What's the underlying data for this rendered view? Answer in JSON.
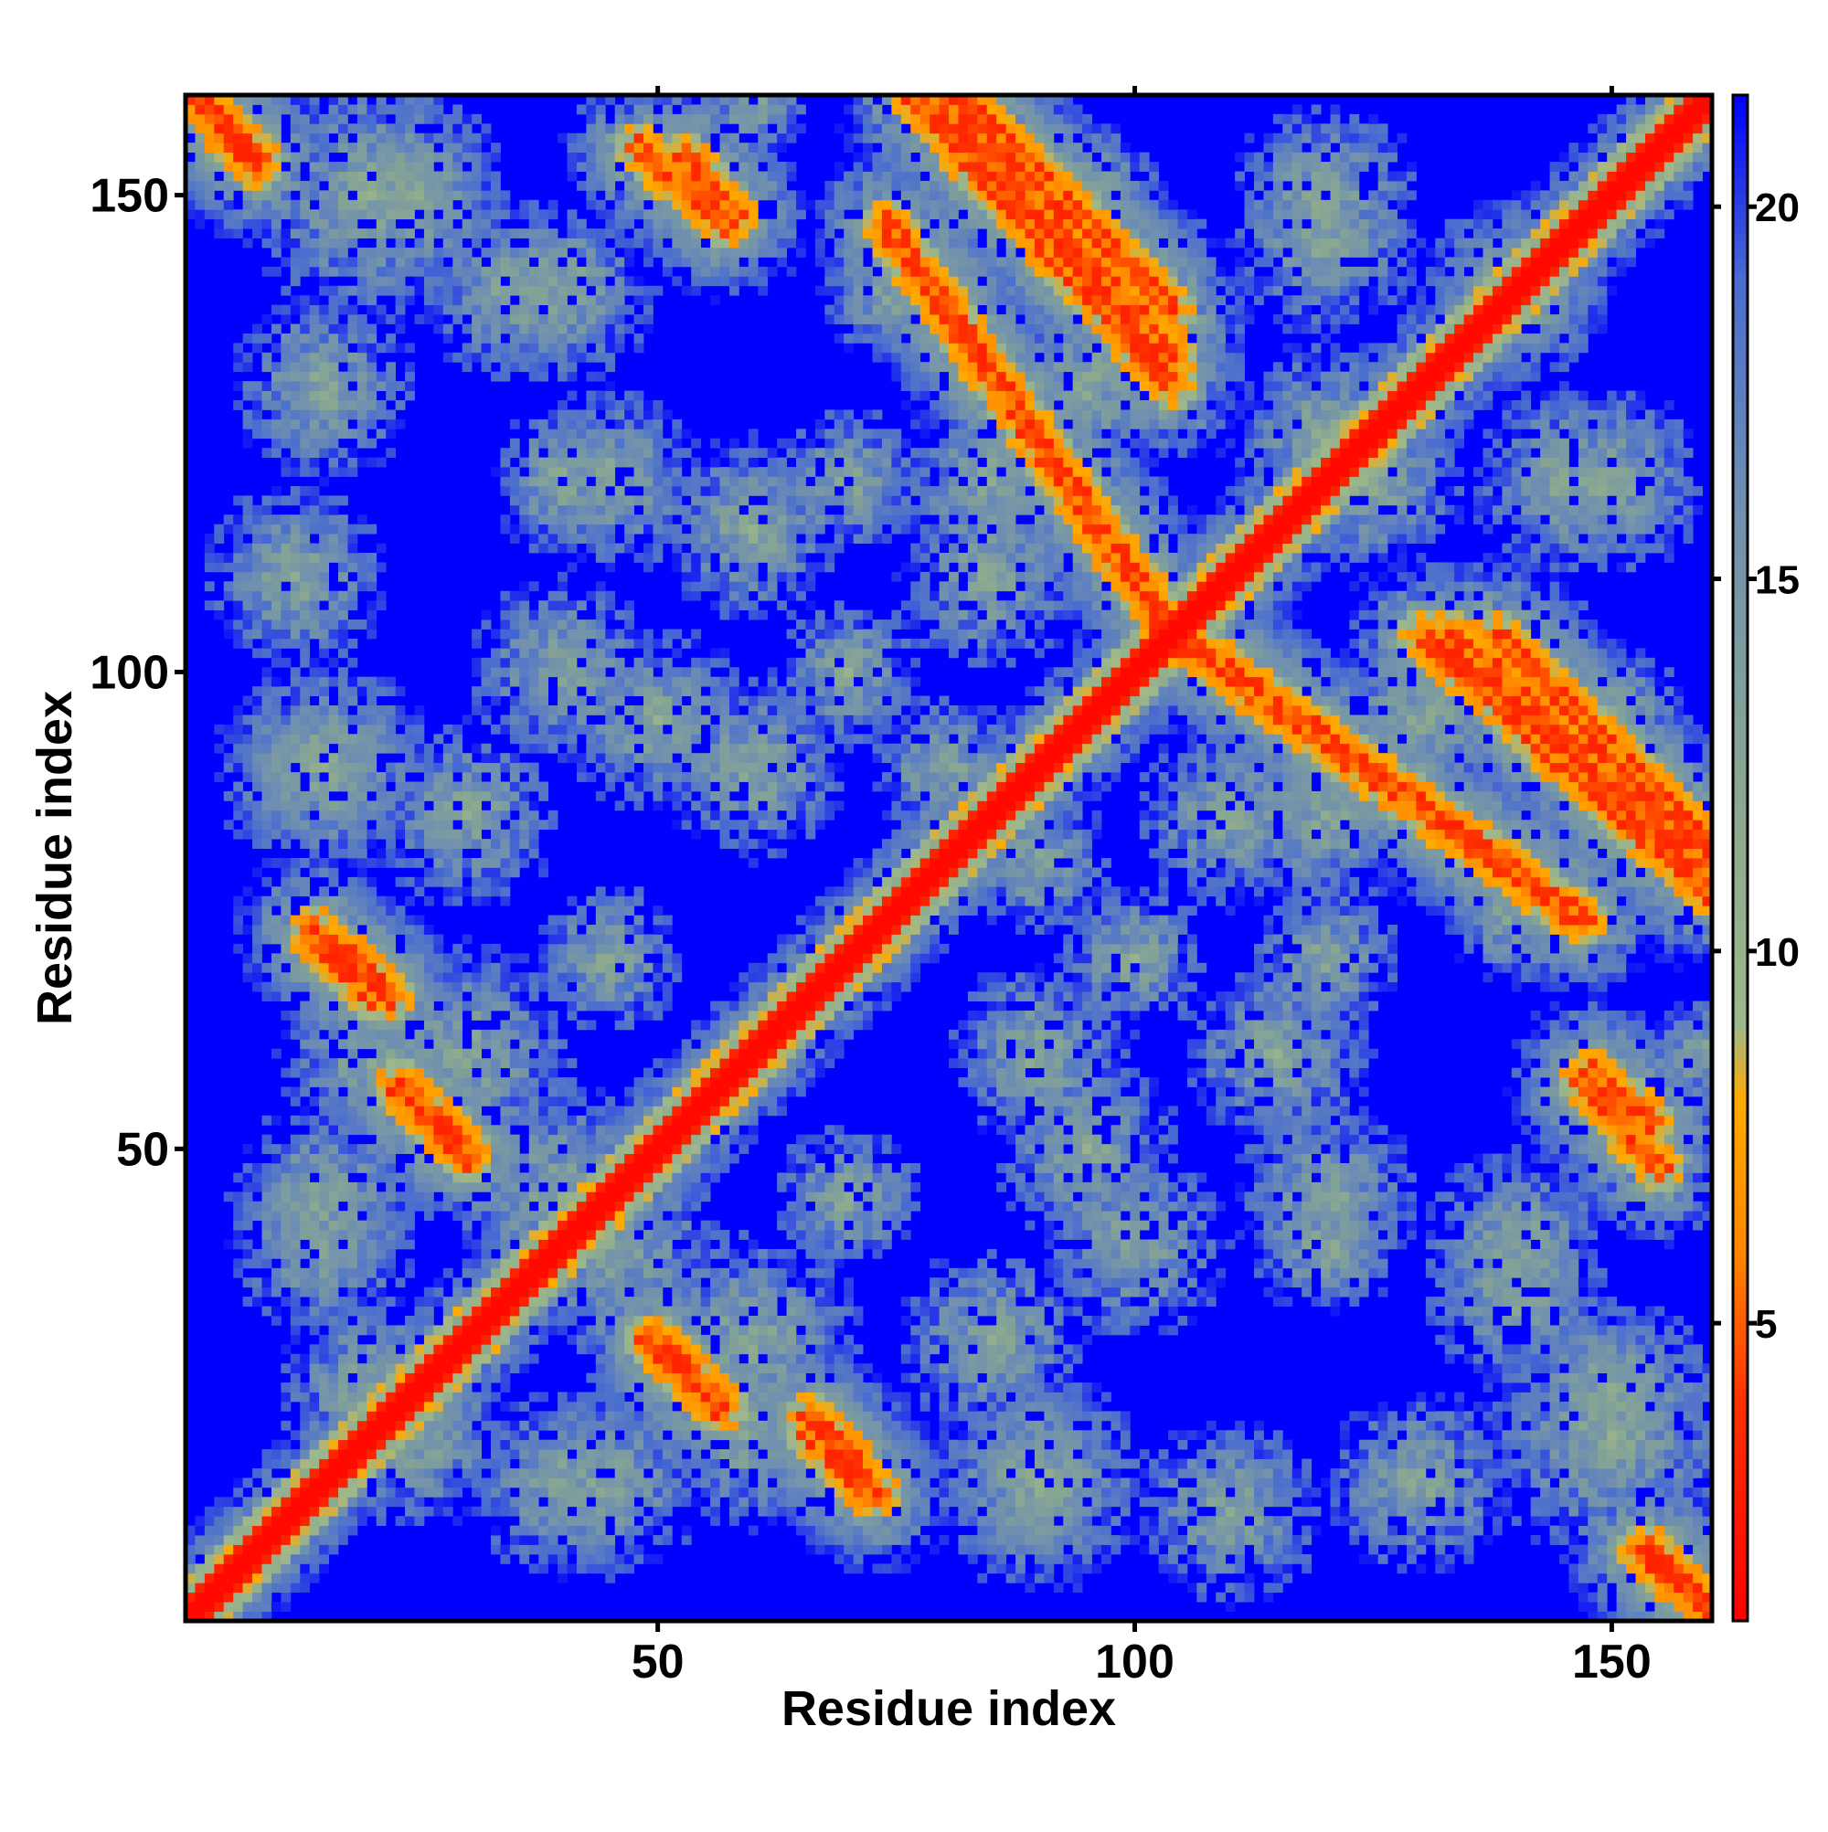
{
  "chart_data": {
    "type": "heatmap",
    "title": "",
    "xlabel": "Residue index",
    "ylabel": "Residue index",
    "n_residues": 160,
    "xlim": [
      1,
      160
    ],
    "ylim": [
      1,
      160
    ],
    "x_ticks": [
      50,
      100,
      150
    ],
    "y_ticks": [
      50,
      100,
      150
    ],
    "x_tick_labels": [
      "50",
      "100",
      "150"
    ],
    "y_tick_labels": [
      "50",
      "100",
      "150"
    ],
    "colorbar": {
      "range": [
        1,
        21.5
      ],
      "ticks": [
        5,
        10,
        15,
        20
      ],
      "tick_labels": [
        "5",
        "10",
        "15",
        "20"
      ],
      "stops": [
        {
          "value": 1,
          "color": "#ff0000"
        },
        {
          "value": 4,
          "color": "#ff3300"
        },
        {
          "value": 6,
          "color": "#ff8800"
        },
        {
          "value": 8,
          "color": "#ffaa00"
        },
        {
          "value": 9,
          "color": "#9fb88a"
        },
        {
          "value": 12,
          "color": "#8aa890"
        },
        {
          "value": 16,
          "color": "#6f8fb0"
        },
        {
          "value": 19,
          "color": "#4a6dd0"
        },
        {
          "value": 21.5,
          "color": "#0000ff"
        }
      ]
    },
    "background_color": "#0000ff",
    "structure": {
      "diagonal": "red (distance ~1-4) along i=j",
      "contact_bands": [
        {
          "kind": "antiparallel",
          "i_start": 82,
          "i_end": 104,
          "j_start": 160,
          "j_end": 138
        },
        {
          "kind": "antiparallel",
          "i_start": 77,
          "i_end": 104,
          "j_start": 160,
          "j_end": 130
        },
        {
          "kind": "antiparallel",
          "i_start": 104,
          "i_end": 147,
          "j_start": 104,
          "j_end": 74
        },
        {
          "kind": "antiparallel",
          "i_start": 133,
          "i_end": 160,
          "j_start": 104,
          "j_end": 80
        },
        {
          "kind": "antiparallel",
          "i_start": 147,
          "i_end": 155,
          "j_start": 57,
          "j_end": 48
        },
        {
          "kind": "antiparallel",
          "i_start": 53,
          "i_end": 58,
          "j_start": 154,
          "j_end": 148
        },
        {
          "kind": "antiparallel",
          "i_start": 2,
          "i_end": 8,
          "j_start": 160,
          "j_end": 154
        },
        {
          "kind": "antiparallel",
          "i_start": 153,
          "i_end": 160,
          "j_start": 8,
          "j_end": 2
        },
        {
          "kind": "antiparallel",
          "i_start": 14,
          "i_end": 22,
          "j_start": 73,
          "j_end": 66
        },
        {
          "kind": "antiparallel",
          "i_start": 23,
          "i_end": 30,
          "j_start": 56,
          "j_end": 49
        },
        {
          "kind": "antiparallel",
          "i_start": 50,
          "i_end": 57,
          "j_start": 30,
          "j_end": 23
        },
        {
          "kind": "antiparallel",
          "i_start": 66,
          "i_end": 72,
          "j_start": 20,
          "j_end": 14
        }
      ]
    }
  }
}
